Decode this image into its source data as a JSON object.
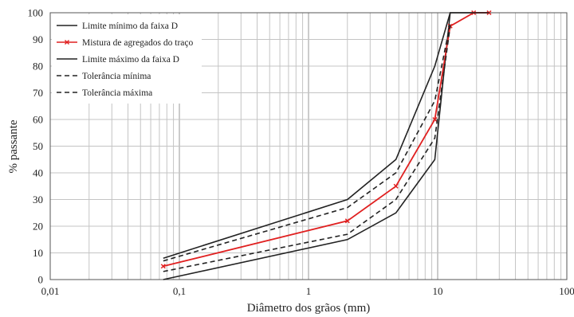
{
  "chart_data": {
    "type": "line",
    "xlabel": "Diâmetro dos grãos (mm)",
    "ylabel": "% passante",
    "x_scale": "log",
    "xlim": [
      0.01,
      100
    ],
    "ylim": [
      0,
      100
    ],
    "grid": true,
    "legend_position": "top-left",
    "x_tick_labels": [
      "0,01",
      "0,1",
      "1",
      "10",
      "100"
    ],
    "y_tick_labels": [
      "0",
      "10",
      "20",
      "30",
      "40",
      "50",
      "60",
      "70",
      "80",
      "90",
      "100"
    ],
    "series": [
      {
        "name": "Limite mínimo da faixa D",
        "color": "#222222",
        "style": "solid",
        "marker": false,
        "x": [
          0.075,
          2,
          4.75,
          9.5,
          12.5,
          25
        ],
        "y": [
          0,
          15,
          25,
          45,
          100,
          100
        ]
      },
      {
        "name": "Mistura de agregados do traço",
        "color": "#e02020",
        "style": "solid",
        "marker": true,
        "x": [
          0.075,
          2,
          4.75,
          9.5,
          12.5,
          19,
          25
        ],
        "y": [
          5,
          22,
          35,
          60,
          95,
          100,
          100
        ]
      },
      {
        "name": "Limite máximo da faixa D",
        "color": "#222222",
        "style": "solid",
        "marker": false,
        "x": [
          0.075,
          2,
          4.75,
          9.5,
          12.5,
          25
        ],
        "y": [
          8,
          30,
          45,
          80,
          100,
          100
        ]
      },
      {
        "name": "Tolerância mínima",
        "color": "#222222",
        "style": "dashed",
        "marker": false,
        "x": [
          0.075,
          2,
          4.75,
          9.5,
          12.5
        ],
        "y": [
          3,
          17,
          30,
          53,
          95
        ]
      },
      {
        "name": "Tolerância máxima",
        "color": "#222222",
        "style": "dashed",
        "marker": false,
        "x": [
          0.075,
          2,
          4.75,
          9.5,
          12.5
        ],
        "y": [
          7,
          27,
          40,
          67,
          96
        ]
      }
    ]
  }
}
